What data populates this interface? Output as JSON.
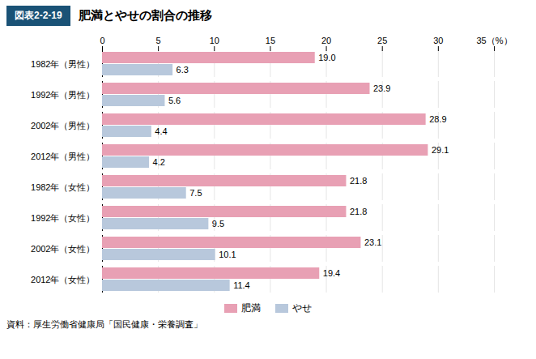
{
  "chart_data": {
    "type": "bar",
    "orientation": "horizontal",
    "title": "肥満とやせの割合の推移",
    "subtitle": "図表2-2-19",
    "annotations": [
      "資料：厚生労働省健康局「国民健康・栄養調査」"
    ],
    "categories": [
      "1982年（男性）",
      "1992年（男性）",
      "2002年（男性）",
      "2012年（男性）",
      "1982年（女性）",
      "1992年（女性）",
      "2002年（女性）",
      "2012年（女性）"
    ],
    "series": [
      {
        "name": "肥満",
        "color": "#e8a0b4",
        "values": [
          19.0,
          23.9,
          28.9,
          29.1,
          21.8,
          21.8,
          23.1,
          19.4
        ],
        "value_labels": [
          "19.0",
          "23.9",
          "28.9",
          "29.1",
          "21.8",
          "21.8",
          "23.1",
          "19.4"
        ]
      },
      {
        "name": "やせ",
        "color": "#b8c8dc",
        "values": [
          6.3,
          5.6,
          4.4,
          4.2,
          7.5,
          9.5,
          10.1,
          11.4
        ],
        "value_labels": [
          "6.3",
          "5.6",
          "4.4",
          "4.2",
          "7.5",
          "9.5",
          "10.1",
          "11.4"
        ]
      }
    ],
    "xlim": [
      0,
      35
    ],
    "xticks": [
      0,
      5,
      10,
      15,
      20,
      25,
      30,
      {
        "value": 35,
        "label": "35（%）"
      }
    ],
    "grid": true,
    "legend": "bottom",
    "data_labels": true
  }
}
